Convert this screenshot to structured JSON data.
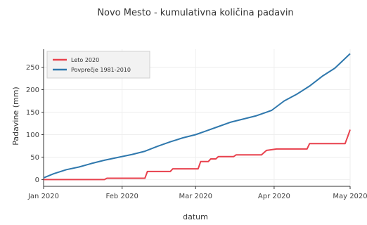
{
  "chart_data": {
    "type": "line",
    "title": "Novo Mesto - kumulativna količina padavin",
    "xlabel": "datum",
    "ylabel": "Padavine (mm)",
    "ylim": [
      -15,
      290
    ],
    "yticks": [
      0,
      50,
      100,
      150,
      200,
      250
    ],
    "xlim": [
      "2020-01-01",
      "2020-05-01"
    ],
    "xticks": [
      {
        "date": "2020-01-01",
        "label": "Jan 2020"
      },
      {
        "date": "2020-02-01",
        "label": "Feb 2020"
      },
      {
        "date": "2020-03-01",
        "label": "Mar 2020"
      },
      {
        "date": "2020-04-01",
        "label": "Apr 2020"
      },
      {
        "date": "2020-05-01",
        "label": "May 2020"
      }
    ],
    "grid": true,
    "legend_position": "top-left",
    "series": [
      {
        "name": "Leto 2020",
        "color": "#e8414d",
        "step": true,
        "points": [
          [
            "2020-01-01",
            0
          ],
          [
            "2020-01-25",
            0
          ],
          [
            "2020-01-26",
            3
          ],
          [
            "2020-02-10",
            3
          ],
          [
            "2020-02-11",
            18
          ],
          [
            "2020-02-20",
            18
          ],
          [
            "2020-02-21",
            24
          ],
          [
            "2020-03-02",
            24
          ],
          [
            "2020-03-03",
            40
          ],
          [
            "2020-03-06",
            40
          ],
          [
            "2020-03-07",
            46
          ],
          [
            "2020-03-09",
            46
          ],
          [
            "2020-03-10",
            51
          ],
          [
            "2020-03-16",
            51
          ],
          [
            "2020-03-17",
            55
          ],
          [
            "2020-03-27",
            55
          ],
          [
            "2020-03-28",
            60
          ],
          [
            "2020-03-29",
            65
          ],
          [
            "2020-04-02",
            68
          ],
          [
            "2020-04-14",
            68
          ],
          [
            "2020-04-15",
            80
          ],
          [
            "2020-04-29",
            80
          ],
          [
            "2020-04-30",
            95
          ],
          [
            "2020-05-01",
            111
          ]
        ]
      },
      {
        "name": "Povprečje 1981-2010",
        "color": "#2f78ad",
        "step": false,
        "points": [
          [
            "2020-01-01",
            4
          ],
          [
            "2020-01-05",
            13
          ],
          [
            "2020-01-10",
            22
          ],
          [
            "2020-01-15",
            28
          ],
          [
            "2020-01-20",
            36
          ],
          [
            "2020-01-25",
            43
          ],
          [
            "2020-01-31",
            50
          ],
          [
            "2020-02-05",
            56
          ],
          [
            "2020-02-10",
            63
          ],
          [
            "2020-02-15",
            74
          ],
          [
            "2020-02-20",
            84
          ],
          [
            "2020-02-25",
            93
          ],
          [
            "2020-03-01",
            100
          ],
          [
            "2020-03-05",
            108
          ],
          [
            "2020-03-10",
            118
          ],
          [
            "2020-03-15",
            128
          ],
          [
            "2020-03-20",
            135
          ],
          [
            "2020-03-25",
            142
          ],
          [
            "2020-03-31",
            154
          ],
          [
            "2020-04-05",
            175
          ],
          [
            "2020-04-10",
            190
          ],
          [
            "2020-04-15",
            208
          ],
          [
            "2020-04-20",
            230
          ],
          [
            "2020-04-25",
            248
          ],
          [
            "2020-05-01",
            280
          ]
        ]
      }
    ]
  }
}
